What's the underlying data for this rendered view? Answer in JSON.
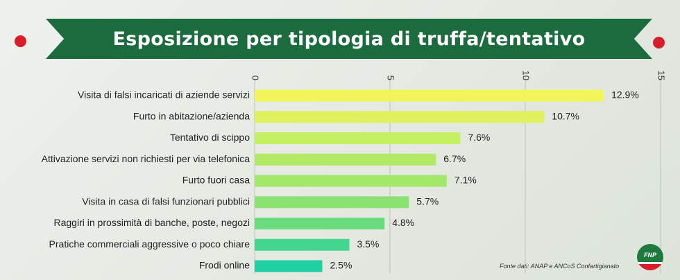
{
  "title": "Esposizione per tipologia di truffa/tentativo",
  "source": "Fonte dati: ANAP e ANCoS Confartigianato",
  "logo_text": "FNP",
  "colors": {
    "banner": "#1b6b3e",
    "accent_red": "#d81e2a",
    "bar_top": "#f2f55a",
    "bar_bottom": "#20d0a2"
  },
  "chart_data": {
    "type": "bar",
    "orientation": "horizontal",
    "categories": [
      "Visita di falsi incaricati di aziende servizi",
      "Furto in abitazione/azienda",
      "Tentativo di scippo",
      "Attivazione servizi non richiesti per via telefonica",
      "Furto fuori casa",
      "Visita in casa di falsi funzionari pubblici",
      "Raggiri in prossimità di banche, poste, negozi",
      "Pratiche commerciali aggressive o poco chiare",
      "Frodi online"
    ],
    "values": [
      12.9,
      10.7,
      7.6,
      6.7,
      7.1,
      5.7,
      4.8,
      3.5,
      2.5
    ],
    "value_labels": [
      "12.9%",
      "10.7%",
      "7.6%",
      "6.7%",
      "7.1%",
      "5.7%",
      "4.8%",
      "3.5%",
      "2.5%"
    ],
    "xlim": [
      0,
      15
    ],
    "xticks": [
      0,
      5,
      10,
      15
    ],
    "xtick_labels": [
      "0",
      "5",
      "10",
      "15"
    ],
    "grid": true,
    "bar_colors": [
      "#f2f55a",
      "#dff15c",
      "#c5ef62",
      "#b2ea66",
      "#a2e86a",
      "#8ae270",
      "#69dc7e",
      "#44d58e",
      "#20d0a2"
    ]
  }
}
